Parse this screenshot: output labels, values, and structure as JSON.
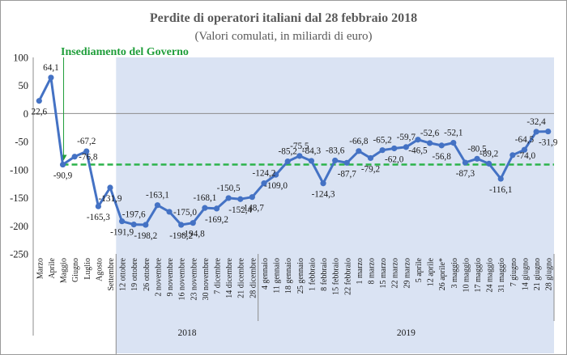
{
  "chart_data": {
    "type": "line",
    "title": "Perdite di operatori italiani  dal 28 febbraio 2018",
    "subtitle": "(Valori comulati, in miliardi di euro)",
    "ylim": [
      -250,
      100
    ],
    "yticks": [
      100,
      50,
      0,
      -50,
      -100,
      -150,
      -200,
      -250
    ],
    "ytick_labels": [
      "100",
      "50",
      "0",
      "-50",
      "-100",
      "-150",
      "-200",
      "-250"
    ],
    "grid": false,
    "categories": [
      "Marzo",
      "Aprile",
      "Maggio",
      "Giugno",
      "Luglio",
      "Agosto",
      "Settembre",
      "12 ottobre",
      "19 ottobre",
      "26 ottobre",
      "2 novembre",
      "9 novembre",
      "16 novembre",
      "23 novembre",
      "30 novembre",
      "7 dicembre",
      "14 dicembre",
      "21 dicembre",
      "28 dicembre",
      "4 gennaio",
      "11 gennaio",
      "18 gennaio",
      "25 gennaio",
      "1 febbraio",
      "8 febbraio",
      "15 febbraio",
      "22 febbraio",
      "1 marzo",
      "8 marzo",
      "15 marzo",
      "22 marzo",
      "29 marzo",
      "5 aprile",
      "12 aprile",
      "26 aprile*",
      "3 maggio",
      "10 maggio",
      "17 maggio",
      "24 maggio",
      "31 maggio",
      "7 giugno",
      "14 giugno",
      "21 giugno",
      "28 giugno"
    ],
    "series": [
      {
        "values": [
          22.6,
          64.1,
          -90.9,
          -76.8,
          -67.2,
          -165.3,
          -131.9,
          -191.9,
          -197.6,
          -198.2,
          -163.1,
          -175.0,
          -198.2,
          -194.8,
          -168.1,
          -169.2,
          -150.5,
          -152.4,
          -148.7,
          -124.2,
          -109.0,
          -85.2,
          -75.5,
          -84.3,
          -124.3,
          -83.6,
          -87.7,
          -66.8,
          -79.2,
          -65.2,
          -62.0,
          -59.7,
          -46.5,
          -52.6,
          -56.8,
          -52.1,
          -87.3,
          -80.5,
          -89.2,
          -116.1,
          -74.0,
          -64.5,
          -32.4,
          -31.9
        ]
      }
    ],
    "data_labels": [
      "22,6",
      "64,1",
      "-90,9",
      "-76,8",
      "-67,2",
      "-165,3",
      "-131,9",
      "-191,9",
      "-197,6",
      "-198,2",
      "-163,1",
      "-175,0",
      "-198,2",
      "-194,8",
      "-168,1",
      "-169,2",
      "-150,5",
      "-152,4",
      "-148,7",
      "-124,2",
      "-109,0",
      "-85,2",
      "-75,5",
      "-84,3",
      "-124,3",
      "-83,6",
      "-87,7",
      "-66,8",
      "-79,2",
      "-65,2",
      "-62,0",
      "-59,7",
      "-46,5",
      "-52,6",
      "-56,8",
      "-52,1",
      "-87,3",
      "-80,5",
      "-89,2",
      "-116,1",
      "-74,0",
      "-64,5",
      "-32,4",
      "-31,9"
    ],
    "reference_line": {
      "value": -90.9,
      "style": "dashed",
      "color": "#2bb34a"
    },
    "annotation": {
      "text": "Insediamento del Governo",
      "category": "Maggio"
    },
    "year_labels": [
      {
        "text": "2018",
        "from": "12 ottobre",
        "to": "28 dicembre"
      },
      {
        "text": "2019",
        "from": "4 gennaio",
        "to": "28 giugno"
      }
    ],
    "shaded_region": {
      "from": "12 ottobre",
      "to": "28 giugno",
      "color": "#dae3f3"
    },
    "colors": {
      "line": "#4472c4",
      "marker": "#4472c4",
      "annotation": "#1f9e3a"
    }
  }
}
